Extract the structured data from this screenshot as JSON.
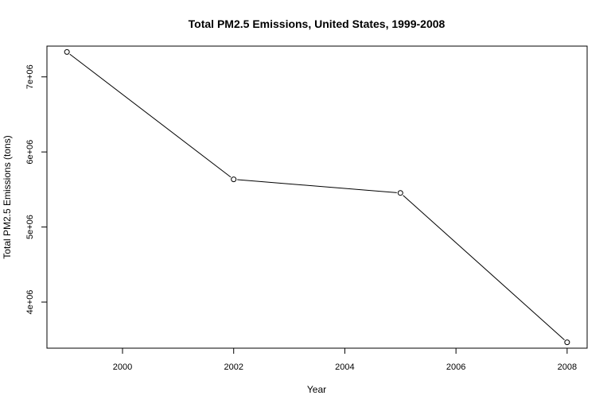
{
  "chart_data": {
    "type": "line",
    "title": "Total PM2.5 Emissions, United States, 1999-2008",
    "xlabel": "Year",
    "ylabel": "Total PM2.5 Emissions (tons)",
    "x": [
      1999,
      2002,
      2005,
      2008
    ],
    "y": [
      7332000,
      5635000,
      5454000,
      3464000
    ],
    "xlim": [
      1998.64,
      2008.36
    ],
    "ylim": [
      3386000,
      7410000
    ],
    "x_ticks": [
      2000,
      2002,
      2004,
      2006,
      2008
    ],
    "x_tick_labels": [
      "2000",
      "2002",
      "2004",
      "2006",
      "2008"
    ],
    "y_ticks": [
      4000000,
      5000000,
      6000000,
      7000000
    ],
    "y_tick_labels": [
      "4e+06",
      "5e+06",
      "6e+06",
      "7e+06"
    ],
    "grid": false,
    "markers": "open-circle",
    "line_color": "#000000"
  }
}
